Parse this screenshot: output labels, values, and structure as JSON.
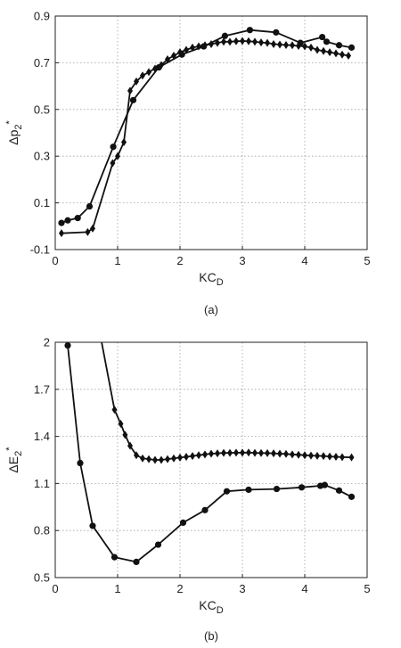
{
  "chart_data": [
    {
      "type": "line",
      "panel_label": "(a)",
      "xlabel": "KC",
      "xlabel_sub": "D",
      "ylabel": "Δp",
      "ylabel_sub": "2",
      "ylabel_sup": "*",
      "xlim": [
        0,
        5
      ],
      "ylim": [
        -0.1,
        0.9
      ],
      "xticks": [
        0,
        1,
        2,
        3,
        4,
        5
      ],
      "yticks": [
        -0.1,
        0.1,
        0.3,
        0.5,
        0.7,
        0.9
      ],
      "xtick_labels": [
        "0",
        "1",
        "2",
        "3",
        "4",
        "5"
      ],
      "ytick_labels": [
        "-0.1",
        "0.1",
        "0.3",
        "0.5",
        "0.7",
        "0.9"
      ],
      "grid": true,
      "series": [
        {
          "marker": "circle",
          "x": [
            0.1,
            0.2,
            0.36,
            0.55,
            0.93,
            1.25,
            1.66,
            2.03,
            2.38,
            2.72,
            3.12,
            3.54,
            3.93,
            4.28,
            4.35,
            4.55,
            4.75
          ],
          "y": [
            0.014,
            0.025,
            0.035,
            0.085,
            0.34,
            0.54,
            0.68,
            0.735,
            0.77,
            0.815,
            0.84,
            0.83,
            0.785,
            0.81,
            0.79,
            0.775,
            0.765
          ]
        },
        {
          "marker": "diamond",
          "x": [
            0.1,
            0.52,
            0.6,
            0.92,
            1.0,
            1.1,
            1.2,
            1.3,
            1.4,
            1.5,
            1.6,
            1.7,
            1.8,
            1.9,
            2.0,
            2.1,
            2.2,
            2.3,
            2.4,
            2.5,
            2.6,
            2.7,
            2.8,
            2.9,
            3.0,
            3.1,
            3.2,
            3.3,
            3.4,
            3.5,
            3.6,
            3.7,
            3.8,
            3.9,
            4.0,
            4.1,
            4.2,
            4.3,
            4.4,
            4.5,
            4.6,
            4.7
          ],
          "y": [
            -0.03,
            -0.025,
            -0.01,
            0.27,
            0.3,
            0.36,
            0.58,
            0.62,
            0.645,
            0.66,
            0.675,
            0.69,
            0.715,
            0.73,
            0.745,
            0.755,
            0.765,
            0.77,
            0.775,
            0.78,
            0.785,
            0.79,
            0.79,
            0.792,
            0.793,
            0.792,
            0.79,
            0.787,
            0.785,
            0.78,
            0.778,
            0.776,
            0.775,
            0.772,
            0.77,
            0.765,
            0.755,
            0.75,
            0.745,
            0.74,
            0.735,
            0.73
          ]
        }
      ]
    },
    {
      "type": "line",
      "panel_label": "(b)",
      "xlabel": "KC",
      "xlabel_sub": "D",
      "ylabel": "ΔE",
      "ylabel_sub": "2",
      "ylabel_sup": "*",
      "xlim": [
        0,
        5
      ],
      "ylim": [
        0.5,
        2.0
      ],
      "xticks": [
        0,
        1,
        2,
        3,
        4,
        5
      ],
      "yticks": [
        0.5,
        0.8,
        1.1,
        1.4,
        1.7,
        2.0
      ],
      "xtick_labels": [
        "0",
        "1",
        "2",
        "3",
        "4",
        "5"
      ],
      "ytick_labels": [
        "0.5",
        "0.8",
        "1.1",
        "1.4",
        "1.7",
        "2"
      ],
      "grid": true,
      "series": [
        {
          "marker": "circle",
          "x": [
            0.2,
            0.4,
            0.6,
            0.95,
            1.3,
            1.65,
            2.05,
            2.4,
            2.75,
            3.1,
            3.55,
            3.95,
            4.25,
            4.32,
            4.55,
            4.75
          ],
          "y": [
            1.98,
            1.23,
            0.83,
            0.63,
            0.6,
            0.71,
            0.85,
            0.93,
            1.05,
            1.06,
            1.065,
            1.075,
            1.085,
            1.09,
            1.055,
            1.015
          ]
        },
        {
          "marker": "diamond",
          "x": [
            0.6,
            0.95,
            1.05,
            1.12,
            1.2,
            1.3,
            1.4,
            1.5,
            1.6,
            1.7,
            1.8,
            1.9,
            2.0,
            2.1,
            2.2,
            2.3,
            2.4,
            2.5,
            2.6,
            2.7,
            2.8,
            2.9,
            3.0,
            3.1,
            3.2,
            3.3,
            3.4,
            3.5,
            3.6,
            3.7,
            3.8,
            3.9,
            4.0,
            4.1,
            4.2,
            4.3,
            4.4,
            4.5,
            4.6,
            4.75
          ],
          "y": [
            2.3,
            1.57,
            1.48,
            1.41,
            1.34,
            1.28,
            1.26,
            1.255,
            1.25,
            1.25,
            1.255,
            1.26,
            1.265,
            1.27,
            1.275,
            1.28,
            1.285,
            1.29,
            1.292,
            1.295,
            1.295,
            1.296,
            1.296,
            1.297,
            1.295,
            1.294,
            1.293,
            1.292,
            1.29,
            1.288,
            1.285,
            1.283,
            1.28,
            1.278,
            1.276,
            1.275,
            1.272,
            1.27,
            1.268,
            1.266
          ]
        }
      ]
    }
  ]
}
